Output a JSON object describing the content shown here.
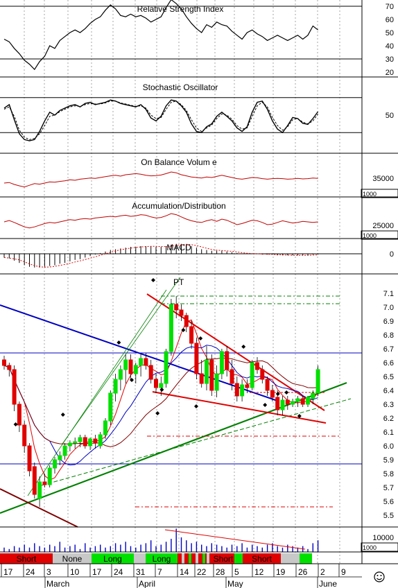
{
  "colors": {
    "up": "#00e000",
    "down": "#e00000",
    "red_line": "#e00000",
    "blue_line": "#0000c0",
    "green_line": "#008000",
    "ob_line": "#c00000",
    "grid": "#909090",
    "panel_border": "#000000",
    "neutral_band": "#c8c8c8",
    "smiley": "#000000"
  },
  "panels": {
    "rsi": {
      "title": "Relative Strength Index",
      "ticks": [
        "70",
        "60",
        "50",
        "40",
        "30",
        "20"
      ]
    },
    "stoch": {
      "title": "Stochastic Oscillator",
      "ticks": [
        "50"
      ]
    },
    "obv": {
      "title": "On Balance Volum e",
      "ticks": [
        "35000"
      ],
      "box_label": "1000"
    },
    "ad": {
      "title": "Accumulation/Distribution",
      "ticks": [
        "25000"
      ],
      "box_label": "1000"
    },
    "macd": {
      "title": "MACD",
      "ticks": [
        "0"
      ]
    },
    "price": {
      "ticks": [
        "7.1",
        "7.0",
        "6.9",
        "6.8",
        "6.7",
        "6.6",
        "6.5",
        "6.4",
        "6.3",
        "6.2",
        "6.1",
        "6.0",
        "5.9",
        "5.8",
        "5.7",
        "5.6",
        "5.5"
      ],
      "annotation": "PT"
    },
    "volume": {
      "ticks": [
        "10000"
      ],
      "box_label": "1000"
    }
  },
  "signals": [
    {
      "label": "Short",
      "type": "short"
    },
    {
      "label": "None",
      "type": "none"
    },
    {
      "label": "Long",
      "type": "long"
    },
    {
      "label": "Long",
      "type": "long"
    },
    {
      "label": "Short",
      "type": "short"
    },
    {
      "label": "Short",
      "type": "short"
    }
  ],
  "xaxis": {
    "day_labels": [
      "17",
      "24",
      "3",
      "10",
      "17",
      "24",
      "31",
      "7",
      "14",
      "22",
      "28",
      "5",
      "12",
      "19",
      "26",
      "2",
      "9"
    ],
    "month_labels": [
      "March",
      "April",
      "May",
      "June"
    ]
  },
  "chart_data": {
    "type": "candlestick",
    "ylim": [
      5.42,
      7.2
    ],
    "candles": [
      {
        "o": 6.62,
        "h": 6.65,
        "l": 6.55,
        "c": 6.58
      },
      {
        "o": 6.58,
        "h": 6.6,
        "l": 6.5,
        "c": 6.55
      },
      {
        "o": 6.55,
        "h": 6.58,
        "l": 6.25,
        "c": 6.3
      },
      {
        "o": 6.3,
        "h": 6.32,
        "l": 6.1,
        "c": 6.15
      },
      {
        "o": 6.15,
        "h": 6.18,
        "l": 5.95,
        "c": 6.0
      },
      {
        "o": 6.0,
        "h": 6.02,
        "l": 5.78,
        "c": 5.82
      },
      {
        "o": 5.85,
        "h": 5.88,
        "l": 5.62,
        "c": 5.65
      },
      {
        "o": 5.62,
        "h": 5.78,
        "l": 5.56,
        "c": 5.74
      },
      {
        "o": 5.74,
        "h": 5.8,
        "l": 5.7,
        "c": 5.72
      },
      {
        "o": 5.72,
        "h": 5.86,
        "l": 5.7,
        "c": 5.84
      },
      {
        "o": 5.84,
        "h": 5.92,
        "l": 5.8,
        "c": 5.9
      },
      {
        "o": 5.9,
        "h": 5.96,
        "l": 5.86,
        "c": 5.93
      },
      {
        "o": 5.93,
        "h": 6.02,
        "l": 5.9,
        "c": 6.0
      },
      {
        "o": 6.0,
        "h": 6.04,
        "l": 5.96,
        "c": 6.02
      },
      {
        "o": 6.02,
        "h": 6.06,
        "l": 5.98,
        "c": 6.03
      },
      {
        "o": 6.03,
        "h": 6.08,
        "l": 5.99,
        "c": 6.06
      },
      {
        "o": 6.06,
        "h": 6.08,
        "l": 5.98,
        "c": 6.0
      },
      {
        "o": 6.0,
        "h": 6.06,
        "l": 5.97,
        "c": 6.05
      },
      {
        "o": 6.05,
        "h": 6.08,
        "l": 5.98,
        "c": 6.02
      },
      {
        "o": 6.0,
        "h": 6.1,
        "l": 5.98,
        "c": 6.08
      },
      {
        "o": 6.08,
        "h": 6.2,
        "l": 6.05,
        "c": 6.18
      },
      {
        "o": 6.18,
        "h": 6.4,
        "l": 6.15,
        "c": 6.38
      },
      {
        "o": 6.38,
        "h": 6.52,
        "l": 6.32,
        "c": 6.48
      },
      {
        "o": 6.48,
        "h": 6.58,
        "l": 6.4,
        "c": 6.55
      },
      {
        "o": 6.55,
        "h": 6.66,
        "l": 6.45,
        "c": 6.62
      },
      {
        "o": 6.62,
        "h": 6.66,
        "l": 6.48,
        "c": 6.52
      },
      {
        "o": 6.52,
        "h": 6.6,
        "l": 6.45,
        "c": 6.58
      },
      {
        "o": 6.58,
        "h": 6.66,
        "l": 6.5,
        "c": 6.63
      },
      {
        "o": 6.63,
        "h": 6.67,
        "l": 6.55,
        "c": 6.58
      },
      {
        "o": 6.58,
        "h": 6.62,
        "l": 6.45,
        "c": 6.48
      },
      {
        "o": 6.48,
        "h": 6.52,
        "l": 6.38,
        "c": 6.42
      },
      {
        "o": 6.42,
        "h": 6.5,
        "l": 6.36,
        "c": 6.45
      },
      {
        "o": 6.45,
        "h": 6.7,
        "l": 6.42,
        "c": 6.68
      },
      {
        "o": 6.68,
        "h": 7.06,
        "l": 6.65,
        "c": 7.02
      },
      {
        "o": 7.02,
        "h": 7.08,
        "l": 6.92,
        "c": 6.98
      },
      {
        "o": 6.98,
        "h": 7.02,
        "l": 6.9,
        "c": 6.94
      },
      {
        "o": 6.94,
        "h": 6.96,
        "l": 6.82,
        "c": 6.86
      },
      {
        "o": 6.86,
        "h": 6.9,
        "l": 6.7,
        "c": 6.74
      },
      {
        "o": 6.74,
        "h": 6.78,
        "l": 6.48,
        "c": 6.52
      },
      {
        "o": 6.52,
        "h": 6.62,
        "l": 6.42,
        "c": 6.45
      },
      {
        "o": 6.45,
        "h": 6.72,
        "l": 6.4,
        "c": 6.62
      },
      {
        "o": 6.62,
        "h": 6.66,
        "l": 6.36,
        "c": 6.4
      },
      {
        "o": 6.4,
        "h": 6.58,
        "l": 6.35,
        "c": 6.52
      },
      {
        "o": 6.52,
        "h": 6.7,
        "l": 6.48,
        "c": 6.68
      },
      {
        "o": 6.68,
        "h": 6.72,
        "l": 6.5,
        "c": 6.55
      },
      {
        "o": 6.55,
        "h": 6.62,
        "l": 6.4,
        "c": 6.45
      },
      {
        "o": 6.45,
        "h": 6.5,
        "l": 6.32,
        "c": 6.36
      },
      {
        "o": 6.36,
        "h": 6.48,
        "l": 6.32,
        "c": 6.44
      },
      {
        "o": 6.44,
        "h": 6.48,
        "l": 6.38,
        "c": 6.42
      },
      {
        "o": 6.42,
        "h": 6.62,
        "l": 6.4,
        "c": 6.6
      },
      {
        "o": 6.6,
        "h": 6.64,
        "l": 6.52,
        "c": 6.55
      },
      {
        "o": 6.55,
        "h": 6.58,
        "l": 6.45,
        "c": 6.48
      },
      {
        "o": 6.48,
        "h": 6.5,
        "l": 6.36,
        "c": 6.4
      },
      {
        "o": 6.4,
        "h": 6.44,
        "l": 6.32,
        "c": 6.35
      },
      {
        "o": 6.35,
        "h": 6.4,
        "l": 6.22,
        "c": 6.26
      },
      {
        "o": 6.26,
        "h": 6.36,
        "l": 6.22,
        "c": 6.33
      },
      {
        "o": 6.33,
        "h": 6.36,
        "l": 6.26,
        "c": 6.3
      },
      {
        "o": 6.3,
        "h": 6.34,
        "l": 6.28,
        "c": 6.32
      },
      {
        "o": 6.32,
        "h": 6.36,
        "l": 6.28,
        "c": 6.34
      },
      {
        "o": 6.34,
        "h": 6.36,
        "l": 6.28,
        "c": 6.3
      },
      {
        "o": 6.3,
        "h": 6.36,
        "l": 6.28,
        "c": 6.35
      },
      {
        "o": 6.34,
        "h": 6.4,
        "l": 6.3,
        "c": 6.38
      },
      {
        "o": 6.38,
        "h": 6.58,
        "l": 6.36,
        "c": 6.55
      }
    ],
    "rsi": [
      45,
      43,
      38,
      34,
      29,
      26,
      22,
      28,
      32,
      40,
      38,
      44,
      47,
      50,
      52,
      50,
      53,
      57,
      60,
      62,
      67,
      71,
      68,
      63,
      62,
      64,
      62,
      63,
      61,
      58,
      60,
      62,
      69,
      75,
      72,
      68,
      62,
      57,
      53,
      50,
      56,
      54,
      58,
      56,
      55,
      51,
      48,
      45,
      50,
      52,
      49,
      47,
      44,
      46,
      48,
      46,
      44,
      46,
      48,
      45,
      48,
      55,
      52
    ],
    "stoch": [
      62,
      68,
      42,
      18,
      8,
      6,
      8,
      22,
      40,
      55,
      50,
      58,
      62,
      66,
      68,
      64,
      70,
      72,
      68,
      70,
      72,
      76,
      74,
      70,
      68,
      66,
      64,
      68,
      60,
      45,
      40,
      48,
      66,
      76,
      74,
      66,
      55,
      35,
      22,
      20,
      30,
      35,
      48,
      55,
      48,
      40,
      28,
      22,
      30,
      55,
      72,
      74,
      60,
      40,
      26,
      20,
      32,
      46,
      44,
      36,
      34,
      44,
      56
    ],
    "stoch_signal": [
      60,
      64,
      48,
      24,
      12,
      8,
      10,
      18,
      32,
      48,
      50,
      56,
      60,
      64,
      66,
      65,
      68,
      70,
      69,
      69,
      71,
      74,
      74,
      71,
      69,
      67,
      65,
      66,
      62,
      50,
      44,
      46,
      60,
      72,
      74,
      68,
      58,
      42,
      28,
      22,
      28,
      33,
      44,
      52,
      50,
      43,
      32,
      26,
      28,
      48,
      66,
      72,
      64,
      46,
      32,
      24,
      30,
      42,
      44,
      38,
      35,
      40,
      52
    ],
    "obv": [
      30,
      32,
      25,
      20,
      16,
      22,
      28,
      26,
      30,
      34,
      33,
      36,
      38,
      42,
      40,
      44,
      46,
      48,
      47,
      50,
      53,
      56,
      58,
      55,
      60,
      62,
      64,
      62,
      58,
      56,
      57,
      59,
      64,
      70,
      67,
      60,
      56,
      52,
      50,
      48,
      52,
      50,
      54,
      58,
      54,
      50,
      46,
      44,
      47,
      50,
      49,
      46,
      44,
      46,
      47,
      46,
      44,
      45,
      47,
      45,
      46,
      48,
      47
    ],
    "ad": [
      40,
      45,
      38,
      30,
      22,
      18,
      22,
      28,
      34,
      38,
      36,
      40,
      44,
      48,
      46,
      50,
      52,
      50,
      54,
      56,
      58,
      60,
      58,
      62,
      64,
      60,
      62,
      66,
      64,
      58,
      54,
      56,
      62,
      70,
      66,
      58,
      50,
      44,
      40,
      38,
      44,
      48,
      42,
      50,
      46,
      38,
      30,
      34,
      40,
      46,
      44,
      38,
      30,
      32,
      38,
      44,
      40,
      36,
      38,
      42,
      40,
      38,
      40
    ],
    "macd": [
      -5,
      -6,
      -9,
      -12,
      -15,
      -17,
      -18,
      -18,
      -17,
      -16,
      -15,
      -13,
      -12,
      -10,
      -8,
      -7,
      -5,
      -3,
      -1,
      1,
      3,
      5,
      6,
      7,
      8,
      9,
      9,
      10,
      10,
      10,
      9,
      9,
      10,
      12,
      13,
      13,
      12,
      10,
      8,
      6,
      5,
      4,
      4,
      4,
      3,
      2,
      1,
      0,
      0,
      0,
      0,
      -1,
      -1,
      -1,
      -2,
      -2,
      -2,
      -2,
      -2,
      -2,
      -2,
      -1,
      -1
    ],
    "volume": [
      3,
      2,
      4,
      3,
      5,
      3,
      6,
      4,
      3,
      5,
      4,
      7,
      3,
      4,
      5,
      2,
      6,
      3,
      4,
      5,
      3,
      4,
      6,
      5,
      7,
      4,
      3,
      5,
      6,
      8,
      4,
      5,
      7,
      9,
      16,
      10,
      8,
      6,
      7,
      5,
      4,
      6,
      5,
      4,
      3,
      5,
      4,
      6,
      3,
      5,
      4,
      3,
      5,
      6,
      4,
      3,
      5,
      4,
      3,
      4,
      2,
      6,
      8
    ]
  }
}
